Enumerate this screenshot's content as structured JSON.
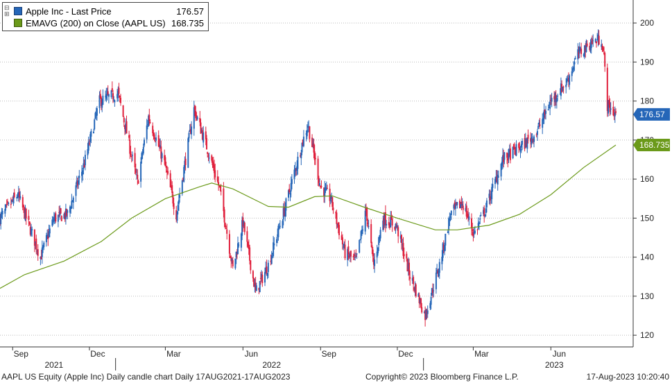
{
  "legend": {
    "price_label": "Apple Inc - Last Price",
    "price_value": "176.57",
    "ema_label": "EMAVG (200)  on Close (AAPL US)",
    "ema_value": "168.735"
  },
  "footer": {
    "left": "AAPL US Equity (Apple Inc) Daily candle chart  Daily 17AUG2021-17AUG2023",
    "center": "Copyright© 2023 Bloomberg Finance L.P.",
    "right": "17-Aug-2023 10:20:40"
  },
  "colors": {
    "up": "#2566b8",
    "down": "#e0203c",
    "ema": "#6b9a1a",
    "grid": "#bbbbbb"
  },
  "chart_data": {
    "type": "candlestick",
    "date_range": [
      "2021-08-17",
      "2023-08-17"
    ],
    "ylim": [
      117,
      205
    ],
    "yticks": [
      120,
      130,
      140,
      150,
      160,
      170,
      180,
      190,
      200
    ],
    "x_month_labels": [
      "Sep",
      "Dec",
      "Mar",
      "Jun",
      "Sep",
      "Dec",
      "Mar",
      "Jun"
    ],
    "x_year_labels": [
      "2021",
      "2022",
      "2023"
    ],
    "last_price": 176.57,
    "ema_last": 168.735,
    "price_path": [
      [
        "2021-08-17",
        150
      ],
      [
        "2021-09-07",
        156
      ],
      [
        "2021-10-04",
        140
      ],
      [
        "2021-10-20",
        150
      ],
      [
        "2021-11-05",
        151
      ],
      [
        "2021-11-25",
        164
      ],
      [
        "2021-12-13",
        180
      ],
      [
        "2022-01-04",
        182
      ],
      [
        "2022-01-27",
        159
      ],
      [
        "2022-02-09",
        176
      ],
      [
        "2022-02-28",
        164
      ],
      [
        "2022-03-14",
        151
      ],
      [
        "2022-04-04",
        178
      ],
      [
        "2022-04-21",
        167
      ],
      [
        "2022-05-05",
        157
      ],
      [
        "2022-05-20",
        137
      ],
      [
        "2022-06-01",
        149
      ],
      [
        "2022-06-16",
        131
      ],
      [
        "2022-07-01",
        138
      ],
      [
        "2022-07-20",
        152
      ],
      [
        "2022-08-10",
        169
      ],
      [
        "2022-08-17",
        174
      ],
      [
        "2022-09-01",
        158
      ],
      [
        "2022-09-13",
        155
      ],
      [
        "2022-09-30",
        141
      ],
      [
        "2022-10-13",
        139
      ],
      [
        "2022-10-25",
        152
      ],
      [
        "2022-11-03",
        138
      ],
      [
        "2022-11-14",
        150
      ],
      [
        "2022-11-30",
        148
      ],
      [
        "2022-12-15",
        136
      ],
      [
        "2023-01-03",
        125
      ],
      [
        "2023-01-20",
        138
      ],
      [
        "2023-02-02",
        151
      ],
      [
        "2023-02-16",
        154
      ],
      [
        "2023-03-02",
        146
      ],
      [
        "2023-03-15",
        152
      ],
      [
        "2023-04-05",
        165
      ],
      [
        "2023-05-01",
        169
      ],
      [
        "2023-05-15",
        172
      ],
      [
        "2023-06-01",
        180
      ],
      [
        "2023-06-20",
        185
      ],
      [
        "2023-07-03",
        192
      ],
      [
        "2023-07-19",
        195
      ],
      [
        "2023-07-31",
        196
      ],
      [
        "2023-08-03",
        191
      ],
      [
        "2023-08-07",
        179
      ],
      [
        "2023-08-17",
        176.57
      ]
    ],
    "ema_path": [
      [
        "2021-08-17",
        132
      ],
      [
        "2021-09-15",
        135.5
      ],
      [
        "2021-11-01",
        139
      ],
      [
        "2021-12-15",
        144
      ],
      [
        "2022-01-20",
        150
      ],
      [
        "2022-03-01",
        155
      ],
      [
        "2022-04-10",
        158
      ],
      [
        "2022-04-25",
        159
      ],
      [
        "2022-05-20",
        157.5
      ],
      [
        "2022-07-01",
        153
      ],
      [
        "2022-07-25",
        152.8
      ],
      [
        "2022-08-25",
        155.5
      ],
      [
        "2022-09-15",
        155.7
      ],
      [
        "2022-10-20",
        153
      ],
      [
        "2022-12-01",
        150
      ],
      [
        "2023-01-15",
        147
      ],
      [
        "2023-02-10",
        147
      ],
      [
        "2023-03-20",
        148.2
      ],
      [
        "2023-04-25",
        151
      ],
      [
        "2023-06-01",
        156
      ],
      [
        "2023-07-10",
        163
      ],
      [
        "2023-08-17",
        168.735
      ]
    ]
  }
}
